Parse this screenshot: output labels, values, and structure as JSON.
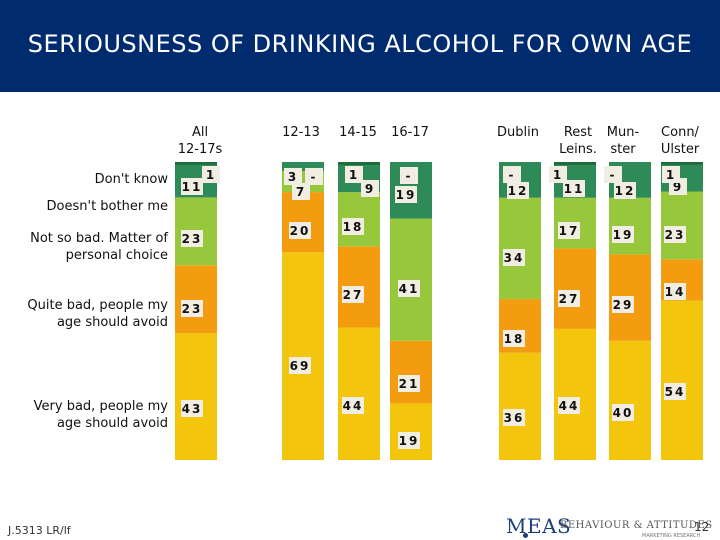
{
  "title": "SERIOUSNESS OF DRINKING ALCOHOL FOR OWN AGE",
  "footer": {
    "ref": "J.5313 LR/lf",
    "page": "12",
    "logo": "MEAS",
    "logo_tag": "BEHAVIOUR & ATTITUDES",
    "logo_sub": "MARKETING RESEARCH"
  },
  "colors": {
    "title_bar": "#002b6f",
    "very_bad": "#f3c50c",
    "quite_bad": "#f39c10",
    "not_so_bad": "#97c83c",
    "doesnt_bother": "#2e8b57",
    "dont_know": "#1f6b3a",
    "label_box": "#f2ede2"
  },
  "chart_data": {
    "type": "bar",
    "stacked": true,
    "percent_scale": true,
    "categories": [
      "All\n12-17s",
      "12-13",
      "14-15",
      "16-17",
      "Dublin",
      "Rest\nLeins.",
      "Mun-\nster",
      "Conn/\nUlster"
    ],
    "series": [
      {
        "name": "Very bad, people my\nage should avoid",
        "values": [
          43,
          69,
          44,
          19,
          36,
          44,
          40,
          54
        ]
      },
      {
        "name": "Quite bad, people my\nage should avoid",
        "values": [
          23,
          20,
          27,
          21,
          18,
          27,
          29,
          14
        ]
      },
      {
        "name": "Not so bad.  Matter of\npersonal choice",
        "values": [
          23,
          7,
          18,
          41,
          34,
          17,
          19,
          23
        ]
      },
      {
        "name": "Doesn't bother me",
        "values": [
          11,
          3,
          9,
          19,
          12,
          11,
          12,
          9
        ]
      },
      {
        "name": "Don't know",
        "values": [
          1,
          null,
          1,
          null,
          null,
          1,
          null,
          1
        ]
      }
    ],
    "labels": [
      [
        "43",
        "69",
        "44",
        "19",
        "36",
        "44",
        "40",
        "54"
      ],
      [
        "23",
        "20",
        "27",
        "21",
        "18",
        "27",
        "29",
        "14"
      ],
      [
        "23",
        "7",
        "18",
        "41",
        "34",
        "17",
        "19",
        "23"
      ],
      [
        "11",
        "3",
        "9",
        "19",
        "12",
        "11",
        "12",
        "9"
      ],
      [
        "1",
        "-",
        "1",
        "-",
        "-",
        "1",
        "-",
        "1"
      ]
    ]
  }
}
